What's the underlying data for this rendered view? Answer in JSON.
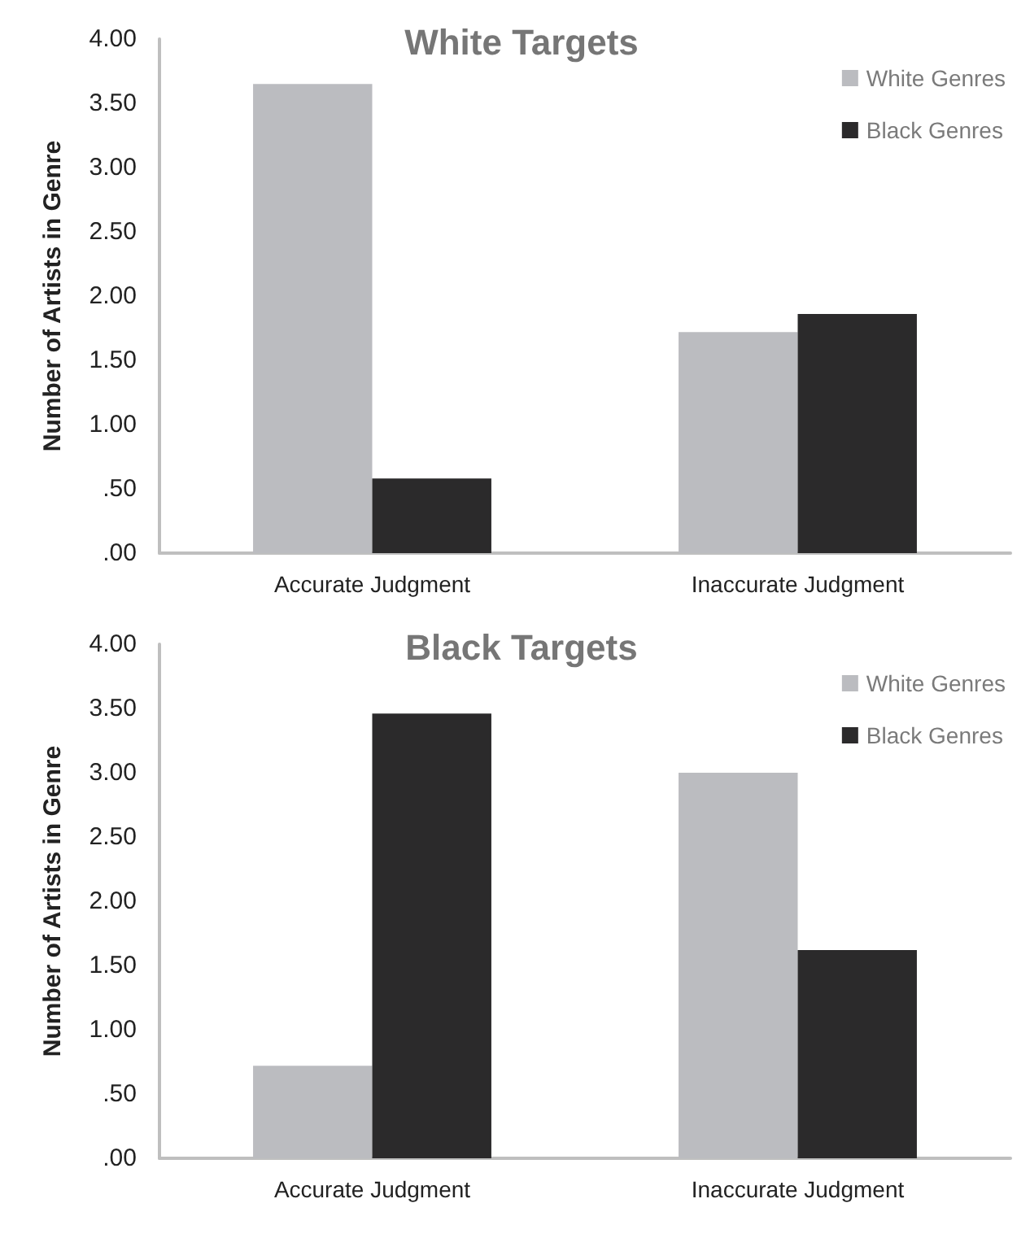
{
  "chart_data": [
    {
      "type": "bar",
      "title": "White Targets",
      "ylabel": "Number of Artists in Genre",
      "categories": [
        "Accurate Judgment",
        "Inaccurate Judgment"
      ],
      "series": [
        {
          "name": "White Genres",
          "color": "#bbbcc0",
          "values": [
            3.65,
            1.72
          ]
        },
        {
          "name": "Black Genres",
          "color": "#2b2a2b",
          "values": [
            0.58,
            1.86
          ]
        }
      ],
      "ylim": [
        0,
        4
      ],
      "yticks": [
        {
          "value": 0,
          "label": ".00"
        },
        {
          "value": 0.5,
          "label": ".50"
        },
        {
          "value": 1,
          "label": "1.00"
        },
        {
          "value": 1.5,
          "label": "1.50"
        },
        {
          "value": 2,
          "label": "2.00"
        },
        {
          "value": 2.5,
          "label": "2.50"
        },
        {
          "value": 3,
          "label": "3.00"
        },
        {
          "value": 3.5,
          "label": "3.50"
        },
        {
          "value": 4,
          "label": "4.00"
        }
      ],
      "grid": false,
      "legend": "top right"
    },
    {
      "type": "bar",
      "title": "Black Targets",
      "ylabel": "Number of Artists in Genre",
      "categories": [
        "Accurate Judgment",
        "Inaccurate Judgment"
      ],
      "series": [
        {
          "name": "White Genres",
          "color": "#bbbcc0",
          "values": [
            0.72,
            3.0
          ]
        },
        {
          "name": "Black Genres",
          "color": "#2b2a2b",
          "values": [
            3.46,
            1.62
          ]
        }
      ],
      "ylim": [
        0,
        4
      ],
      "yticks": [
        {
          "value": 0,
          "label": ".00"
        },
        {
          "value": 0.5,
          "label": ".50"
        },
        {
          "value": 1,
          "label": "1.00"
        },
        {
          "value": 1.5,
          "label": "1.50"
        },
        {
          "value": 2,
          "label": "2.00"
        },
        {
          "value": 2.5,
          "label": "2.50"
        },
        {
          "value": 3,
          "label": "3.00"
        },
        {
          "value": 3.5,
          "label": "3.50"
        },
        {
          "value": 4,
          "label": "4.00"
        }
      ],
      "grid": false,
      "legend": "top right"
    }
  ]
}
